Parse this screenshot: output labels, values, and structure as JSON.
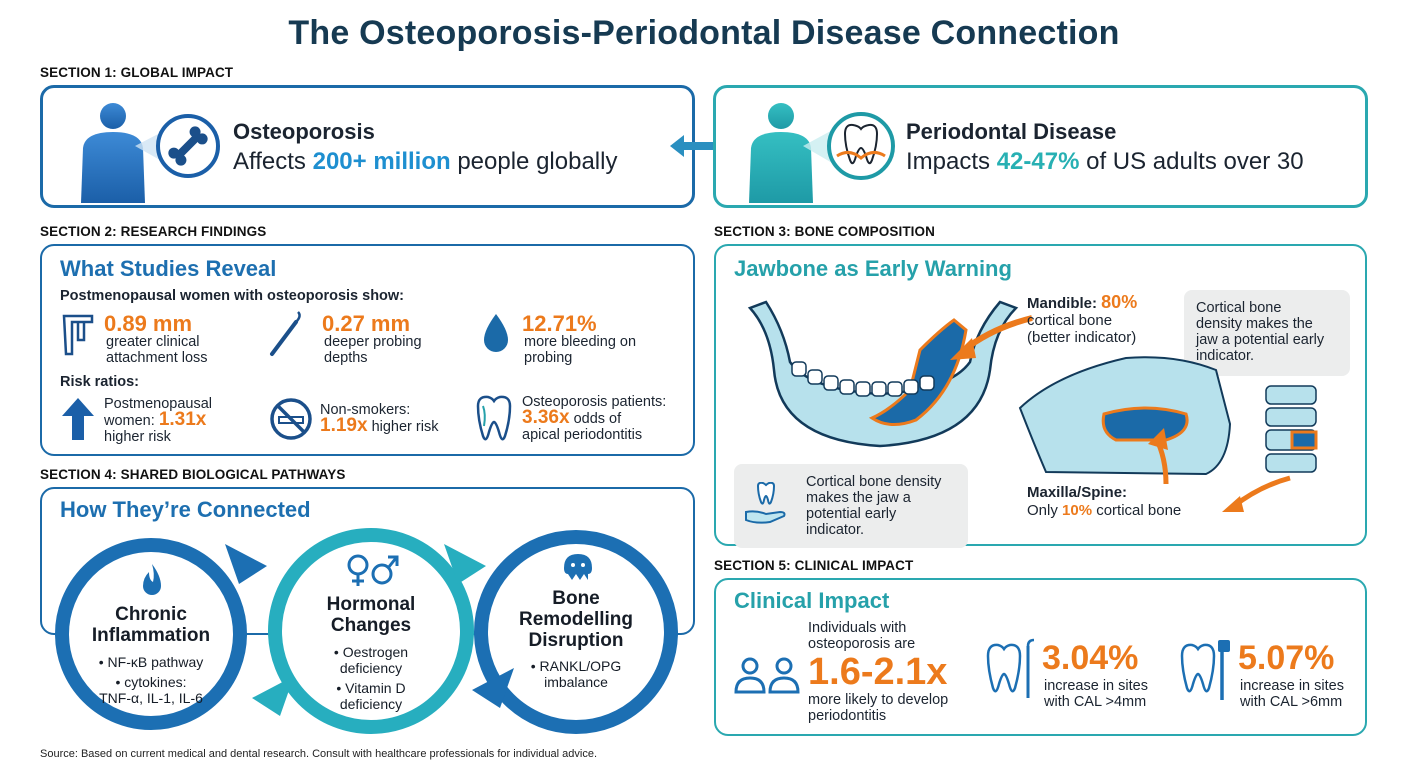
{
  "title": "The Osteoporosis-Periodontal Disease Connection",
  "section1": {
    "label": "SECTION 1: GLOBAL IMPACT",
    "left": {
      "heading": "Osteoporosis",
      "pre": "Affects ",
      "highlight": "200+ million",
      "post": " people globally"
    },
    "right": {
      "heading": "Periodontal Disease",
      "pre": "Impacts ",
      "highlight": "42-47%",
      "post": " of US adults over 30"
    }
  },
  "section2": {
    "label": "SECTION 2: RESEARCH FINDINGS",
    "heading": "What Studies Reveal",
    "intro": "Postmenopausal women with osteoporosis show:",
    "stats": [
      {
        "value": "0.89 mm",
        "line1": "greater clinical",
        "line2": "attachment loss",
        "icon": "caliper-icon"
      },
      {
        "value": "0.27 mm",
        "line1": "deeper probing",
        "line2": "depths",
        "icon": "dental-probe-icon"
      },
      {
        "value": "12.71%",
        "line1": "more bleeding on",
        "line2": "probing",
        "icon": "blood-drop-icon"
      }
    ],
    "risk_label": "Risk ratios:",
    "risks": [
      {
        "line1": "Postmenopausal",
        "pre2": "women: ",
        "value": "1.31x",
        "line3": "higher risk",
        "icon": "arrow-up-icon"
      },
      {
        "line1": "Non-smokers:",
        "value": "1.19x",
        "post2": " higher risk",
        "icon": "no-smoking-icon"
      },
      {
        "line1": "Osteoporosis patients:",
        "value": "3.36x",
        "post2": " odds of",
        "line3": "apical periodontitis",
        "icon": "tooth-root-icon"
      }
    ]
  },
  "section3": {
    "label": "SECTION 3: BONE COMPOSITION",
    "heading": "Jawbone as Early Warning",
    "mandible": {
      "pre": "Mandible: ",
      "value": "80%",
      "line2": "cortical bone",
      "line3": "(better indicator)"
    },
    "callout": {
      "line1": "Cortical bone",
      "line2": "density makes the",
      "line3": "jaw a potential early",
      "line4": "indicator."
    },
    "maxilla": {
      "line1": "Maxilla/Spine:",
      "pre": "Only ",
      "value": "10%",
      "post": " cortical bone"
    },
    "note": {
      "line1": "Cortical bone density",
      "line2": "makes the jaw a",
      "line3": "potential early",
      "line4": "indicator."
    }
  },
  "section4": {
    "label": "SECTION 4: SHARED BIOLOGICAL PATHWAYS",
    "heading": "How They’re Connected",
    "pathways": [
      {
        "name1": "Chronic",
        "name2": "Inflammation",
        "b1": "• NF-κB pathway",
        "b2": "• cytokines:",
        "b3": "TNF-α, IL-1, IL-6",
        "icon": "flame-icon"
      },
      {
        "name1": "Hormonal",
        "name2": "Changes",
        "b1": "• Oestrogen",
        "b2": "deficiency",
        "b3": "• Vitamin D",
        "b4": "deficiency",
        "icon": "gender-icon"
      },
      {
        "name1": "Bone",
        "name2": "Remodelling",
        "name3": "Disruption",
        "b1": "• RANKL/OPG",
        "b2": "imbalance",
        "icon": "osteoclast-icon"
      }
    ]
  },
  "section5": {
    "label": "SECTION 5: CLINICAL IMPACT",
    "heading": "Clinical Impact",
    "main": {
      "line1": "Individuals with",
      "line2": "osteoporosis are",
      "value": "1.6-2.1x",
      "line3": "more likely to develop",
      "line4": "periodontitis"
    },
    "stats": [
      {
        "value": "3.04%",
        "line1": "increase in sites",
        "line2": "with CAL >4mm"
      },
      {
        "value": "5.07%",
        "line1": "increase in sites",
        "line2": "with CAL >6mm"
      }
    ]
  },
  "source": "Source: Based on current medical and dental research. Consult with healthcare professionals for individual advice.",
  "colors": {
    "navy": "#163a52",
    "blue": "#1b6aa8",
    "teal": "#2aa8b0",
    "orange": "#ec7a1c"
  }
}
